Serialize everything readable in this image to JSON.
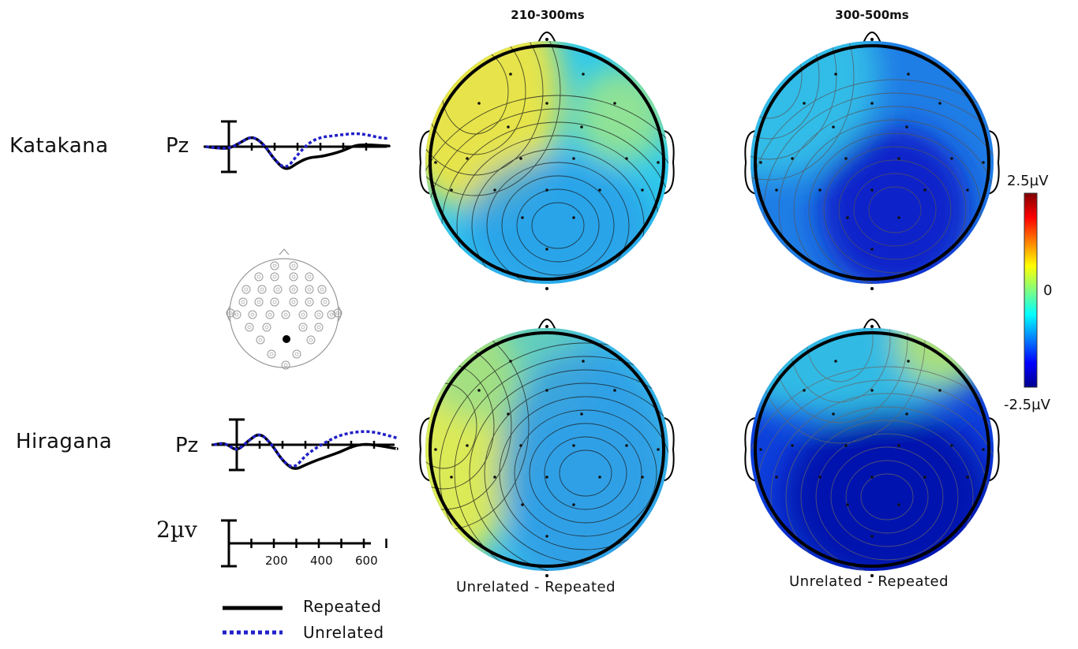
{
  "rows": [
    {
      "label": "Katakana",
      "electrode": "Pz"
    },
    {
      "label": "Hiragana",
      "electrode": "Pz"
    }
  ],
  "windows": [
    "210-300ms",
    "300-500ms"
  ],
  "difference_label": "Unrelated - Repeated",
  "colorbar": {
    "max": "2.5µV",
    "mid": "0",
    "min": "-2.5µV",
    "colors": [
      "#00008f",
      "#0000ff",
      "#0080ff",
      "#00ffff",
      "#80ff80",
      "#ffff00",
      "#ff8000",
      "#ff0000",
      "#800000"
    ]
  },
  "scale": {
    "amplitude": "2µv",
    "ticks_ms": [
      "200",
      "400",
      "600"
    ]
  },
  "legend": [
    {
      "label": "Repeated",
      "color": "#000000",
      "style": "solid"
    },
    {
      "label": "Unrelated",
      "color": "#2020c8",
      "style": "dotted"
    }
  ],
  "chart_data": {
    "type": "line",
    "x_unit": "ms",
    "xlim": [
      -100,
      700
    ],
    "series_meta": [
      "Repeated",
      "Unrelated"
    ],
    "panels": [
      {
        "row": "Katakana",
        "electrode": "Pz",
        "x": [
          -100,
          -50,
          0,
          50,
          100,
          150,
          200,
          250,
          300,
          350,
          400,
          450,
          500,
          550,
          600,
          650,
          700
        ],
        "series": [
          {
            "name": "Repeated",
            "values": [
              0,
              -0.2,
              -0.3,
              0.6,
              1.6,
              0.5,
              -2.0,
              -3.6,
              -2.4,
              -1.6,
              -1.5,
              -1.1,
              -0.6,
              0.2,
              0.3,
              0.2,
              0.1
            ]
          },
          {
            "name": "Unrelated",
            "values": [
              0,
              -0.2,
              -0.3,
              0.6,
              1.6,
              0.5,
              -2.0,
              -3.4,
              -1.2,
              0.6,
              1.4,
              1.6,
              1.8,
              2.0,
              1.8,
              1.4,
              1.2
            ]
          }
        ]
      },
      {
        "row": "Hiragana",
        "electrode": "Pz",
        "x": [
          -100,
          -50,
          0,
          50,
          100,
          150,
          200,
          250,
          300,
          350,
          400,
          450,
          500,
          550,
          600,
          650,
          700
        ],
        "series": [
          {
            "name": "Repeated",
            "values": [
              0,
              0.3,
              -1.0,
              0.6,
              1.8,
              0.2,
              -2.4,
              -3.8,
              -3.0,
              -2.3,
              -1.7,
              -1.1,
              -0.3,
              0.1,
              0.0,
              -0.3,
              -0.6
            ]
          },
          {
            "name": "Unrelated",
            "values": [
              0,
              0.3,
              -1.0,
              0.6,
              1.8,
              0.2,
              -2.4,
              -3.6,
              -1.6,
              -0.4,
              0.6,
              1.4,
              1.8,
              2.0,
              1.9,
              1.5,
              1.0
            ]
          }
        ]
      }
    ]
  }
}
